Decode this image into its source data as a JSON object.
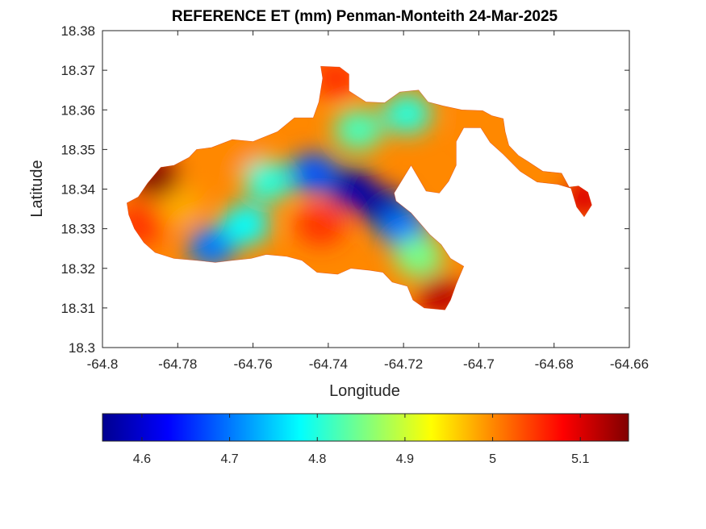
{
  "chart_data": {
    "type": "heatmap",
    "title": "REFERENCE ET (mm) Penman-Monteith 24-Mar-2025",
    "xlabel": "Longitude",
    "ylabel": "Latitude",
    "xlim": [
      -64.8,
      -64.66
    ],
    "ylim": [
      18.3,
      18.38
    ],
    "x_ticks": [
      -64.8,
      -64.78,
      -64.76,
      -64.74,
      -64.72,
      -64.7,
      -64.68,
      -64.66
    ],
    "x_tick_labels": [
      "-64.8",
      "-64.78",
      "-64.76",
      "-64.74",
      "-64.72",
      "-64.7",
      "-64.68",
      "-64.66"
    ],
    "y_ticks": [
      18.3,
      18.31,
      18.32,
      18.33,
      18.34,
      18.35,
      18.36,
      18.37,
      18.38
    ],
    "y_tick_labels": [
      "18.3",
      "18.31",
      "18.32",
      "18.33",
      "18.34",
      "18.35",
      "18.36",
      "18.37",
      "18.38"
    ],
    "grid": false,
    "colormap": "jet",
    "colorbar": {
      "location": "bottom",
      "range": [
        4.555,
        5.155
      ],
      "ticks": [
        4.6,
        4.7,
        4.8,
        4.9,
        5.0,
        5.1
      ],
      "tick_labels": [
        "4.6",
        "4.7",
        "4.8",
        "4.9",
        "5",
        "5.1"
      ]
    },
    "region_outline": [
      [
        -64.7935,
        18.3365
      ],
      [
        -64.7905,
        18.338
      ],
      [
        -64.788,
        18.3415
      ],
      [
        -64.7845,
        18.3455
      ],
      [
        -64.781,
        18.346
      ],
      [
        -64.777,
        18.348
      ],
      [
        -64.775,
        18.35
      ],
      [
        -64.771,
        18.3505
      ],
      [
        -64.7655,
        18.3525
      ],
      [
        -64.76,
        18.352
      ],
      [
        -64.7535,
        18.3545
      ],
      [
        -64.749,
        18.358
      ],
      [
        -64.744,
        18.358
      ],
      [
        -64.7425,
        18.362
      ],
      [
        -64.7415,
        18.368
      ],
      [
        -64.742,
        18.371
      ],
      [
        -64.737,
        18.3708
      ],
      [
        -64.7345,
        18.369
      ],
      [
        -64.7345,
        18.3648
      ],
      [
        -64.73,
        18.362
      ],
      [
        -64.725,
        18.3618
      ],
      [
        -64.721,
        18.3645
      ],
      [
        -64.716,
        18.365
      ],
      [
        -64.7135,
        18.362
      ],
      [
        -64.7095,
        18.361
      ],
      [
        -64.7045,
        18.36
      ],
      [
        -64.699,
        18.3598
      ],
      [
        -64.6965,
        18.3585
      ],
      [
        -64.6935,
        18.3578
      ],
      [
        -64.693,
        18.3545
      ],
      [
        -64.692,
        18.351
      ],
      [
        -64.6895,
        18.3485
      ],
      [
        -64.687,
        18.347
      ],
      [
        -64.683,
        18.3445
      ],
      [
        -64.678,
        18.344
      ],
      [
        -64.676,
        18.3405
      ],
      [
        -64.6735,
        18.3408
      ],
      [
        -64.671,
        18.3392
      ],
      [
        -64.67,
        18.336
      ],
      [
        -64.672,
        18.333
      ],
      [
        -64.674,
        18.3355
      ],
      [
        -64.6755,
        18.3402
      ],
      [
        -64.679,
        18.3412
      ],
      [
        -64.6845,
        18.3418
      ],
      [
        -64.689,
        18.3445
      ],
      [
        -64.6935,
        18.3488
      ],
      [
        -64.697,
        18.3518
      ],
      [
        -64.6995,
        18.3555
      ],
      [
        -64.704,
        18.3555
      ],
      [
        -64.706,
        18.352
      ],
      [
        -64.706,
        18.346
      ],
      [
        -64.708,
        18.342
      ],
      [
        -64.7105,
        18.339
      ],
      [
        -64.714,
        18.3395
      ],
      [
        -64.718,
        18.346
      ],
      [
        -64.7225,
        18.339
      ],
      [
        -64.722,
        18.337
      ],
      [
        -64.718,
        18.334
      ],
      [
        -64.713,
        18.3285
      ],
      [
        -64.71,
        18.326
      ],
      [
        -64.7075,
        18.3225
      ],
      [
        -64.704,
        18.3205
      ],
      [
        -64.706,
        18.316
      ],
      [
        -64.7075,
        18.312
      ],
      [
        -64.709,
        18.3095
      ],
      [
        -64.7145,
        18.31
      ],
      [
        -64.7175,
        18.312
      ],
      [
        -64.719,
        18.3155
      ],
      [
        -64.723,
        18.3165
      ],
      [
        -64.7255,
        18.319
      ],
      [
        -64.729,
        18.3195
      ],
      [
        -64.734,
        18.32
      ],
      [
        -64.7375,
        18.3185
      ],
      [
        -64.743,
        18.319
      ],
      [
        -64.747,
        18.322
      ],
      [
        -64.751,
        18.323
      ],
      [
        -64.7565,
        18.3235
      ],
      [
        -64.7605,
        18.3225
      ],
      [
        -64.7655,
        18.322
      ],
      [
        -64.77,
        18.3215
      ],
      [
        -64.775,
        18.322
      ],
      [
        -64.781,
        18.3225
      ],
      [
        -64.786,
        18.324
      ],
      [
        -64.789,
        18.3265
      ],
      [
        -64.7915,
        18.33
      ],
      [
        -64.793,
        18.3335
      ]
    ],
    "value_centers": [
      {
        "lon": -64.7335,
        "lat": 18.34,
        "value": 4.58
      },
      {
        "lon": -64.725,
        "lat": 18.335,
        "value": 4.58
      },
      {
        "lon": -64.744,
        "lat": 18.344,
        "value": 4.68
      },
      {
        "lon": -64.72,
        "lat": 18.33,
        "value": 4.7
      },
      {
        "lon": -64.771,
        "lat": 18.3255,
        "value": 4.7
      },
      {
        "lon": -64.762,
        "lat": 18.331,
        "value": 4.78
      },
      {
        "lon": -64.756,
        "lat": 18.342,
        "value": 4.8
      },
      {
        "lon": -64.732,
        "lat": 18.355,
        "value": 4.82
      },
      {
        "lon": -64.719,
        "lat": 18.359,
        "value": 4.8
      },
      {
        "lon": -64.716,
        "lat": 18.323,
        "value": 4.85
      },
      {
        "lon": -64.78,
        "lat": 18.336,
        "value": 4.98
      },
      {
        "lon": -64.786,
        "lat": 18.343,
        "value": 5.15
      },
      {
        "lon": -64.742,
        "lat": 18.331,
        "value": 5.05
      },
      {
        "lon": -64.764,
        "lat": 18.35,
        "value": 5.0
      },
      {
        "lon": -64.738,
        "lat": 18.368,
        "value": 5.05
      },
      {
        "lon": -64.71,
        "lat": 18.313,
        "value": 5.12
      },
      {
        "lon": -64.672,
        "lat": 18.338,
        "value": 5.1
      },
      {
        "lon": -64.685,
        "lat": 18.343,
        "value": 5.0
      },
      {
        "lon": -64.698,
        "lat": 18.357,
        "value": 5.0
      },
      {
        "lon": -64.79,
        "lat": 18.331,
        "value": 5.05
      }
    ]
  },
  "colors": {
    "axes_frame": "#262626",
    "background": "#ffffff"
  }
}
